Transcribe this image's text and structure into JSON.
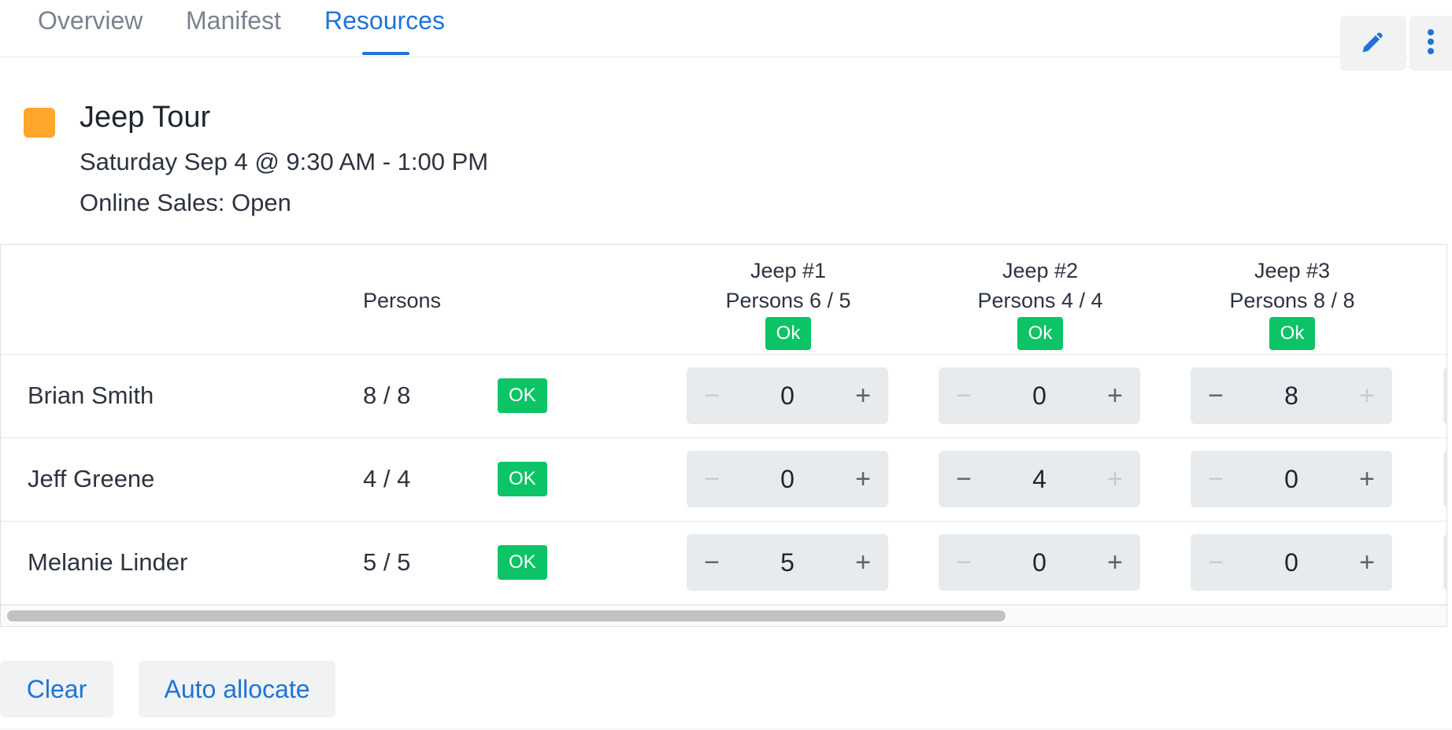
{
  "tabs": [
    {
      "label": "Overview"
    },
    {
      "label": "Manifest"
    },
    {
      "label": "Resources"
    }
  ],
  "active_tab": "Resources",
  "toolbar": {
    "edit_icon": "pencil-icon",
    "more_icon": "kebab-menu-icon"
  },
  "event": {
    "color": "#FFA62B",
    "title": "Jeep Tour",
    "datetime": "Saturday Sep 4 @ 9:30 AM - 1:00 PM",
    "online_sales": "Online Sales: Open"
  },
  "table": {
    "persons_header": "Persons",
    "resources": [
      {
        "name": "Jeep #1",
        "persons": "Persons 6 / 5",
        "status": "Ok"
      },
      {
        "name": "Jeep #2",
        "persons": "Persons 4 / 4",
        "status": "Ok"
      },
      {
        "name": "Jeep #3",
        "persons": "Persons 8 / 8",
        "status": "Ok"
      }
    ],
    "rows": [
      {
        "name": "Brian Smith",
        "persons": "8 / 8",
        "status": "OK",
        "allocations": [
          "0",
          "0",
          "8"
        ]
      },
      {
        "name": "Jeff Greene",
        "persons": "4 / 4",
        "status": "OK",
        "allocations": [
          "0",
          "4",
          "0"
        ]
      },
      {
        "name": "Melanie Linder",
        "persons": "5 / 5",
        "status": "OK",
        "allocations": [
          "5",
          "0",
          "0"
        ]
      }
    ],
    "stepper_symbols": {
      "minus": "−",
      "plus": "+"
    },
    "scroll_fraction": 0.69
  },
  "buttons": {
    "clear": "Clear",
    "auto_allocate": "Auto allocate"
  },
  "colors": {
    "accent": "#1F74D6",
    "ok_green": "#0CC466",
    "event_orange": "#FFA62B"
  }
}
